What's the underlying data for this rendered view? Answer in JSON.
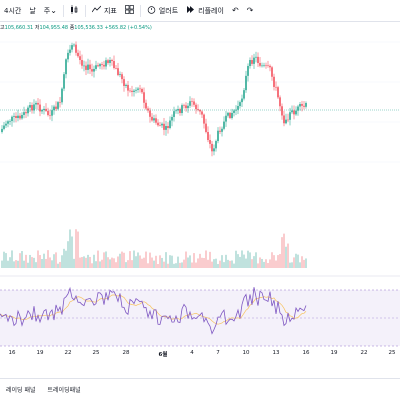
{
  "toolbar": {
    "timeframe": "4시간",
    "day": "날",
    "week": "주",
    "chevron": "⌄",
    "indicators": "지표",
    "alert": "얼러트",
    "replay": "리플레이"
  },
  "ohlc": {
    "high_label": "고",
    "high": "105,660.31",
    "low_label": "저",
    "low": "104,955.48",
    "close_label": "종",
    "close": "105,536.33",
    "change": "+565.82 (+0.54%)"
  },
  "colors": {
    "up": "#089981",
    "down": "#f23645",
    "rsi": "#7e57c2",
    "rsi_ma": "#f7c35f",
    "rsi_band": "#ede7f6"
  },
  "chart_data": {
    "type": "candlestick",
    "x_ticks": [
      "16",
      "19",
      "22",
      "25",
      "28",
      "6월",
      "4",
      "7",
      "10",
      "13",
      "16",
      "19",
      "22",
      "25"
    ],
    "candles_note": "",
    "ylim": [
      100000,
      112000
    ]
  },
  "bottom": {
    "tab1": "레이딩 패널",
    "tab2": "트레이딩패널"
  }
}
